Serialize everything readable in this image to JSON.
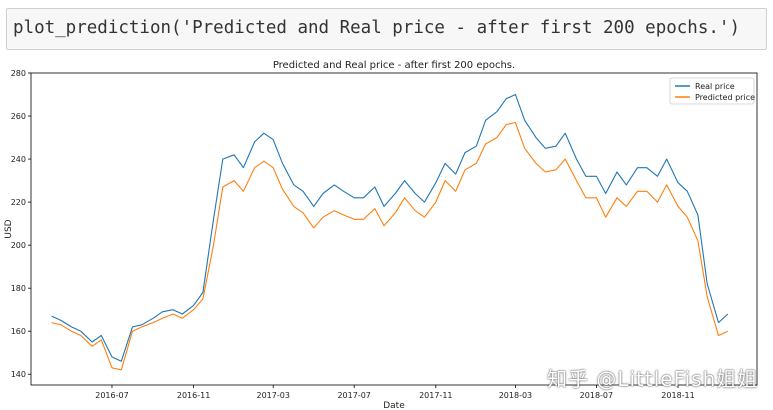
{
  "code_cell": {
    "text": "plot_prediction('Predicted and Real price - after first 200 epochs.')"
  },
  "chart_data": {
    "type": "line",
    "title": "Predicted and Real price - after first 200 epochs.",
    "xlabel": "Date",
    "ylabel": "USD",
    "ylim": [
      135,
      280
    ],
    "xlim": [
      "2016-03-01",
      "2019-02-28"
    ],
    "y_ticks": [
      140,
      160,
      180,
      200,
      220,
      240,
      260,
      280
    ],
    "x_ticks": [
      "2016-07",
      "2016-11",
      "2017-03",
      "2017-07",
      "2017-11",
      "2018-03",
      "2018-07",
      "2018-11"
    ],
    "grid": false,
    "legend_position": "top-right",
    "x": [
      "2016-04-01",
      "2016-04-15",
      "2016-05-01",
      "2016-05-15",
      "2016-06-01",
      "2016-06-15",
      "2016-07-01",
      "2016-07-15",
      "2016-08-01",
      "2016-08-15",
      "2016-09-01",
      "2016-09-15",
      "2016-10-01",
      "2016-10-15",
      "2016-11-01",
      "2016-11-15",
      "2016-12-01",
      "2016-12-15",
      "2017-01-01",
      "2017-01-15",
      "2017-02-01",
      "2017-02-15",
      "2017-03-01",
      "2017-03-15",
      "2017-04-01",
      "2017-04-15",
      "2017-05-01",
      "2017-05-15",
      "2017-06-01",
      "2017-06-15",
      "2017-07-01",
      "2017-07-15",
      "2017-08-01",
      "2017-08-15",
      "2017-09-01",
      "2017-09-15",
      "2017-10-01",
      "2017-10-15",
      "2017-11-01",
      "2017-11-15",
      "2017-12-01",
      "2017-12-15",
      "2018-01-01",
      "2018-01-15",
      "2018-02-01",
      "2018-02-15",
      "2018-03-01",
      "2018-03-15",
      "2018-04-01",
      "2018-04-15",
      "2018-05-01",
      "2018-05-15",
      "2018-06-01",
      "2018-06-15",
      "2018-07-01",
      "2018-07-15",
      "2018-08-01",
      "2018-08-15",
      "2018-09-01",
      "2018-09-15",
      "2018-10-01",
      "2018-10-15",
      "2018-11-01",
      "2018-11-15",
      "2018-12-01",
      "2018-12-15",
      "2019-01-01",
      "2019-01-15"
    ],
    "series": [
      {
        "name": "Real price",
        "color": "#1f77b4",
        "values": [
          167,
          165,
          162,
          160,
          155,
          158,
          148,
          146,
          162,
          163,
          166,
          169,
          170,
          168,
          172,
          178,
          212,
          240,
          242,
          236,
          248,
          252,
          249,
          238,
          228,
          225,
          218,
          224,
          228,
          225,
          222,
          222,
          227,
          218,
          224,
          230,
          224,
          220,
          229,
          238,
          233,
          243,
          246,
          258,
          262,
          268,
          270,
          258,
          250,
          245,
          246,
          252,
          240,
          232,
          232,
          224,
          234,
          228,
          236,
          236,
          232,
          240,
          229,
          225,
          214,
          182,
          164,
          168
        ]
      },
      {
        "name": "Predicted price",
        "color": "#ff7f0e",
        "values": [
          164,
          163,
          160,
          158,
          153,
          156,
          143,
          142,
          160,
          162,
          164,
          166,
          168,
          166,
          170,
          175,
          200,
          227,
          230,
          225,
          236,
          239,
          236,
          226,
          218,
          215,
          208,
          213,
          216,
          214,
          212,
          212,
          217,
          209,
          215,
          222,
          216,
          213,
          220,
          230,
          225,
          235,
          238,
          247,
          250,
          256,
          257,
          245,
          238,
          234,
          235,
          240,
          230,
          222,
          222,
          213,
          222,
          218,
          225,
          225,
          220,
          228,
          218,
          213,
          202,
          176,
          158,
          160
        ]
      }
    ]
  },
  "watermark": "知乎 @LittleFish姐姐"
}
